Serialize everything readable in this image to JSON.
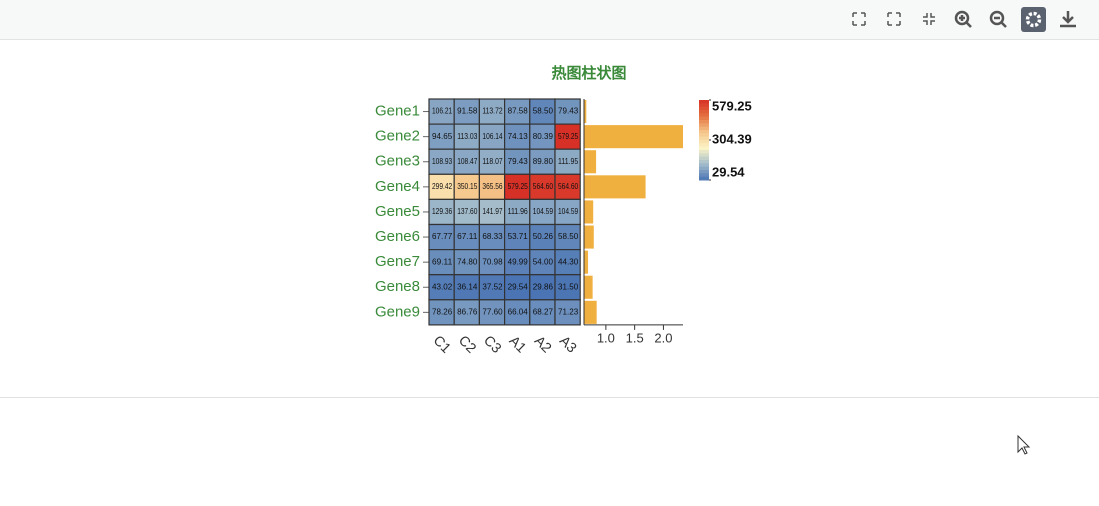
{
  "chart_data": {
    "type": "heatmap-bar",
    "title": "热图柱状图",
    "rows": [
      "Gene1",
      "Gene2",
      "Gene3",
      "Gene4",
      "Gene5",
      "Gene6",
      "Gene7",
      "Gene8",
      "Gene9"
    ],
    "columns": [
      "C1",
      "C2",
      "C3",
      "A1",
      "A2",
      "A3"
    ],
    "values": [
      [
        106.21,
        91.58,
        113.72,
        87.58,
        58.5,
        79.43
      ],
      [
        94.65,
        113.03,
        106.14,
        74.13,
        80.39,
        579.25
      ],
      [
        108.93,
        108.47,
        118.07,
        79.43,
        89.8,
        111.95
      ],
      [
        299.42,
        350.15,
        365.56,
        579.25,
        564.6,
        564.6
      ],
      [
        129.36,
        137.6,
        141.97,
        111.96,
        104.59,
        104.59
      ],
      [
        67.77,
        67.11,
        68.33,
        53.71,
        50.26,
        58.5
      ],
      [
        69.11,
        74.8,
        70.98,
        49.99,
        54.0,
        44.3
      ],
      [
        43.02,
        36.14,
        37.52,
        29.54,
        29.86,
        31.5
      ],
      [
        78.26,
        86.76,
        77.6,
        66.04,
        68.27,
        71.23
      ]
    ],
    "value_labels": [
      [
        "106.21",
        "91.58",
        "113.72",
        "87.58",
        "58.50",
        "79.43"
      ],
      [
        "94.65",
        "113.03",
        "106.14",
        "74.13",
        "80.39",
        "579.25"
      ],
      [
        "108.93",
        "108.47",
        "118.07",
        "79.43",
        "89.80",
        "111.95"
      ],
      [
        "299.42",
        "350.15",
        "365.56",
        "579.25",
        "564.60",
        "564.60"
      ],
      [
        "129.36",
        "137.60",
        "141.97",
        "111.96",
        "104.59",
        "104.59"
      ],
      [
        "67.77",
        "67.11",
        "68.33",
        "53.71",
        "50.26",
        "58.50"
      ],
      [
        "69.11",
        "74.80",
        "70.98",
        "49.99",
        "54.00",
        "44.30"
      ],
      [
        "43.02",
        "36.14",
        "37.52",
        "29.54",
        "29.86",
        "31.50"
      ],
      [
        "78.26",
        "86.76",
        "77.60",
        "66.04",
        "68.27",
        "71.23"
      ]
    ],
    "color_range": [
      29.54,
      579.25
    ],
    "color_ticks": [
      579.25,
      304.39,
      29.54
    ],
    "colorscale": [
      "#4a74b4",
      "#a3bccb",
      "#fcf4c6",
      "#f5c58a",
      "#e4703f",
      "#d73027"
    ],
    "bar_values": [
      0.66,
      2.34,
      0.83,
      1.69,
      0.78,
      0.79,
      0.69,
      0.77,
      0.84
    ],
    "bar_color": "#f0b040",
    "xlim": [
      0.62,
      2.34
    ],
    "xticks": [
      {
        "value": 1,
        "label": "1.0"
      },
      {
        "value": 1.5,
        "label": "1.5"
      },
      {
        "value": 2,
        "label": "2.0"
      }
    ],
    "title_color": "#3a8a3a",
    "label_color": "#3a8a3a"
  }
}
